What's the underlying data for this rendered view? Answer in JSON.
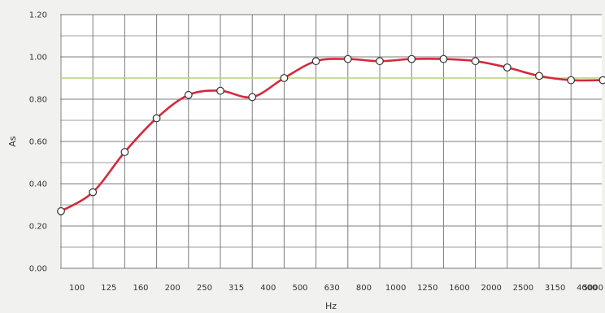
{
  "chart_data": {
    "type": "line",
    "title": "",
    "xlabel": "Hz",
    "ylabel": "As",
    "categories": [
      "100",
      "125",
      "160",
      "200",
      "250",
      "315",
      "400",
      "500",
      "630",
      "800",
      "1000",
      "1250",
      "1600",
      "2000",
      "2500",
      "3150",
      "4000",
      "5000"
    ],
    "series": [
      {
        "values": [
          0.27,
          0.36,
          0.55,
          0.71,
          0.82,
          0.84,
          0.81,
          0.9,
          0.98,
          0.99,
          0.98,
          0.99,
          0.99,
          0.98,
          0.95,
          0.91,
          0.89,
          0.89
        ],
        "color": "#d42a3c"
      }
    ],
    "ylim": [
      0,
      1.2
    ],
    "yticks": [
      "0.00",
      "0.20",
      "0.40",
      "0.60",
      "0.80",
      "1.00",
      "1.20"
    ],
    "reference_lines": [
      {
        "value": 0.9,
        "color": "#b6d47a"
      }
    ],
    "grid": true,
    "colors": {
      "background": "#f1f1ef",
      "plot_background": "#ffffff",
      "grid": "#7c7c7c",
      "line": "#d42a3c",
      "marker_fill": "#ffffff",
      "marker_stroke": "#333333"
    }
  }
}
